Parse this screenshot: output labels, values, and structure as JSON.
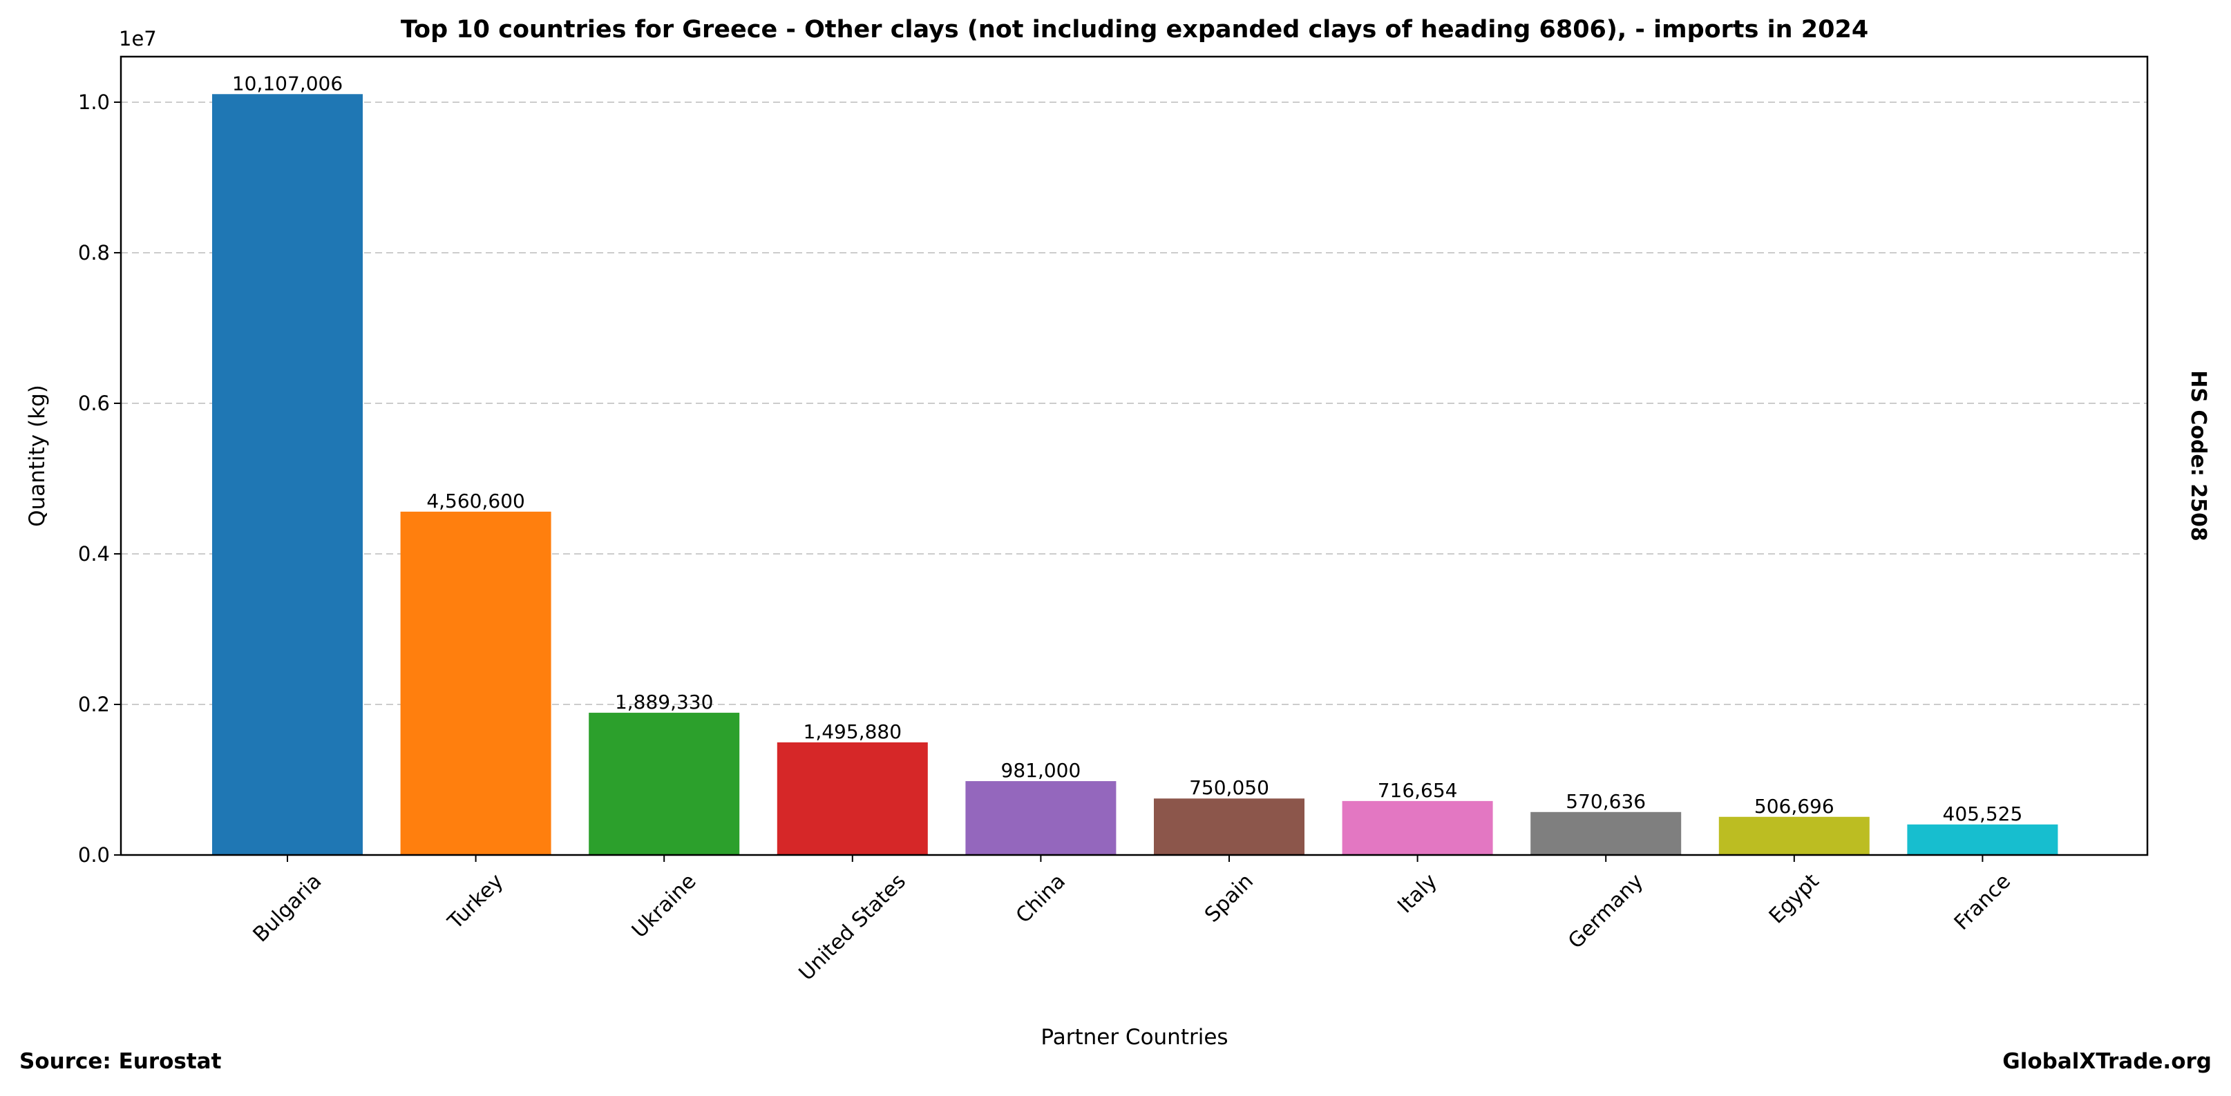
{
  "chart_data": {
    "type": "bar",
    "title": "Top 10 countries for Greece - Other clays (not including expanded clays of heading 6806), - imports in 2024",
    "xlabel": "Partner Countries",
    "ylabel": "Quantity (kg)",
    "y_offset_label": "1e7",
    "ylim": [
      0,
      10605000
    ],
    "yticks": [
      0,
      2000000,
      4000000,
      6000000,
      8000000,
      10000000
    ],
    "ytick_labels": [
      "0.0",
      "0.2",
      "0.4",
      "0.6",
      "0.8",
      "1.0"
    ],
    "grid": "y dashed",
    "categories": [
      "Bulgaria",
      "Turkey",
      "Ukraine",
      "United States",
      "China",
      "Spain",
      "Italy",
      "Germany",
      "Egypt",
      "France"
    ],
    "values": [
      10107006,
      4560600,
      1889330,
      1495880,
      981000,
      750050,
      716654,
      570636,
      506696,
      405525
    ],
    "value_labels": [
      "10,107,006",
      "4,560,600",
      "1,889,330",
      "1,495,880",
      "981,000",
      "750,050",
      "716,654",
      "570,636",
      "506,696",
      "405,525"
    ],
    "colors": [
      "#1f77b4",
      "#ff7f0e",
      "#2ca02c",
      "#d62728",
      "#9467bd",
      "#8c564b",
      "#e377c2",
      "#7f7f7f",
      "#bcbd22",
      "#17becf"
    ]
  },
  "side_label": "HS Code: 2508",
  "source": "Source: Eurostat",
  "brand": "GlobalXTrade.org"
}
